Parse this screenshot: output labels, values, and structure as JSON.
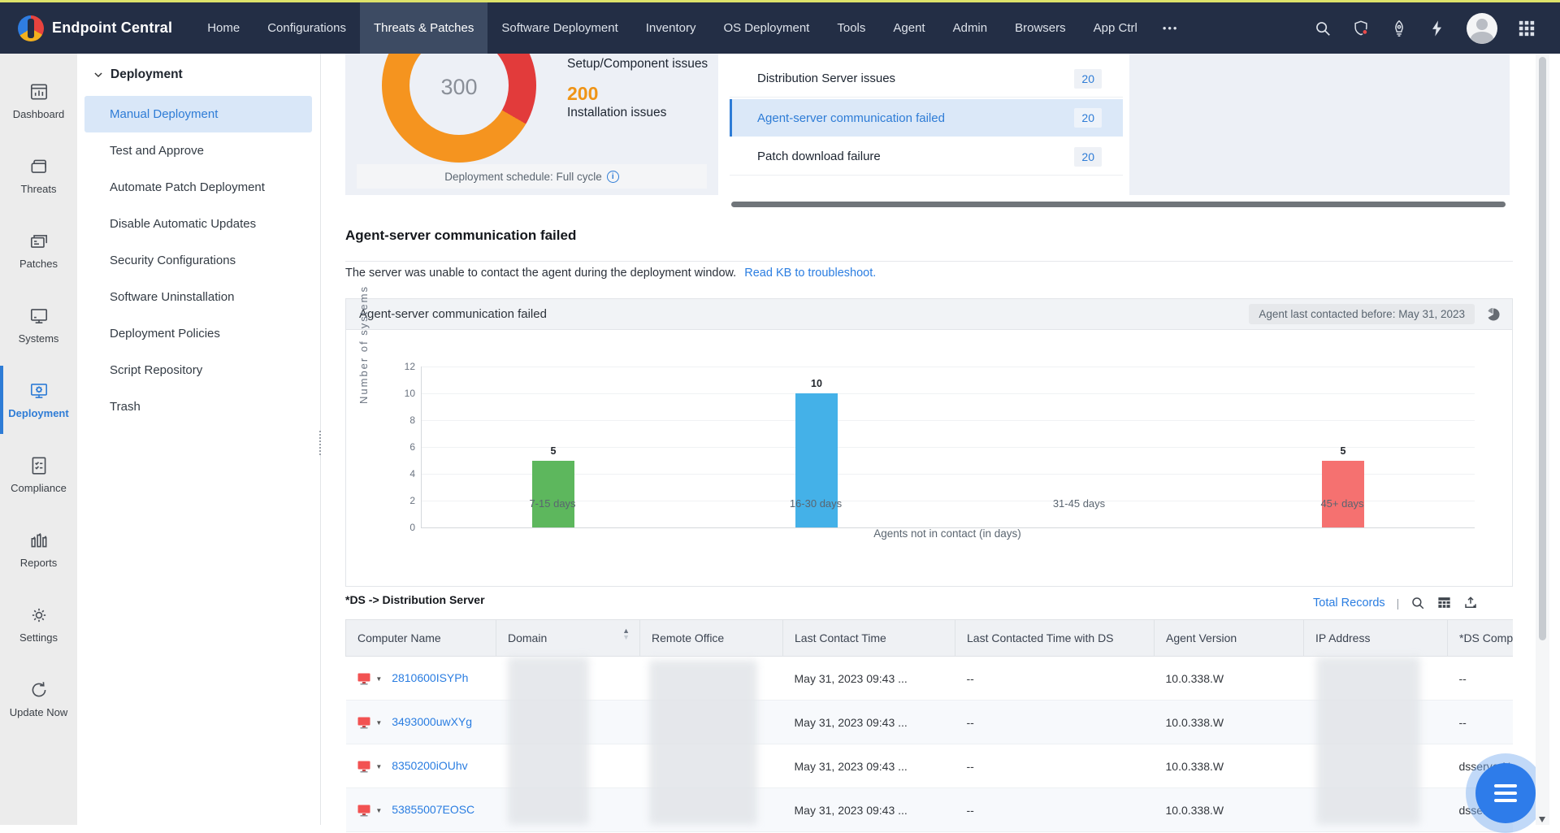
{
  "navbar": {
    "brand": "Endpoint Central",
    "items": [
      {
        "label": "Home"
      },
      {
        "label": "Configurations"
      },
      {
        "label": "Threats & Patches"
      },
      {
        "label": "Software Deployment"
      },
      {
        "label": "Inventory"
      },
      {
        "label": "OS Deployment"
      },
      {
        "label": "Tools"
      },
      {
        "label": "Agent"
      },
      {
        "label": "Admin"
      },
      {
        "label": "Browsers"
      },
      {
        "label": "App Ctrl"
      }
    ],
    "more_label": "•••",
    "active_item": "Threats & Patches"
  },
  "sidebar": {
    "items": [
      {
        "label": "Dashboard"
      },
      {
        "label": "Threats"
      },
      {
        "label": "Patches"
      },
      {
        "label": "Systems"
      },
      {
        "label": "Deployment"
      },
      {
        "label": "Compliance"
      },
      {
        "label": "Reports"
      },
      {
        "label": "Settings"
      },
      {
        "label": "Update Now"
      }
    ],
    "active_item": "Deployment",
    "accent_color": "#2e7cd6"
  },
  "submenu": {
    "header": "Deployment",
    "items": [
      {
        "label": "Manual Deployment"
      },
      {
        "label": "Test and Approve"
      },
      {
        "label": "Automate Patch Deployment"
      },
      {
        "label": "Disable Automatic Updates"
      },
      {
        "label": "Security Configurations"
      },
      {
        "label": "Software Uninstallation"
      },
      {
        "label": "Deployment Policies"
      },
      {
        "label": "Script Repository"
      },
      {
        "label": "Trash"
      }
    ],
    "selected_item": "Manual Deployment"
  },
  "overview": {
    "donut": {
      "total": "300",
      "colors": {
        "setup_component": "#e23b3b",
        "installation": "#f5941f"
      }
    },
    "legend": [
      {
        "label": "Setup/Component issues"
      },
      {
        "value": "200",
        "label": "Installation issues"
      }
    ],
    "schedule_text": "Deployment schedule: Full cycle",
    "issues": [
      {
        "label": "Distribution Server issues",
        "count": "20"
      },
      {
        "label": "Agent-server communication failed",
        "count": "20",
        "selected": true
      },
      {
        "label": "Patch download failure",
        "count": "20"
      }
    ]
  },
  "section": {
    "title": "Agent-server communication failed",
    "description": "The server was unable to contact the agent during the deployment window.",
    "kb_link": "Read KB to troubleshoot."
  },
  "panel": {
    "title": "Agent-server communication failed",
    "filter_chip": "Agent last contacted before: May 31, 2023"
  },
  "chart_data": {
    "type": "bar",
    "title": "Agent-server communication failed",
    "categories": [
      "7-15 days",
      "16-30 days",
      "31-45 days",
      "45+ days"
    ],
    "values": [
      5,
      10,
      0,
      5
    ],
    "data_labels": [
      "5",
      "10",
      "",
      "5"
    ],
    "bar_colors": [
      "#5db75d",
      "#44b1e8",
      "#cccccc",
      "#f57170"
    ],
    "xlabel": "Agents not in contact (in days)",
    "ylabel": "Number of systems",
    "yticks": [
      "12",
      "10",
      "8",
      "6",
      "4",
      "2",
      "0"
    ],
    "ylim": [
      0,
      12
    ],
    "grid": true,
    "legend_position": "none"
  },
  "table": {
    "note": "*DS -> Distribution Server",
    "toolbar": {
      "total_records": "Total Records",
      "separator": "|"
    },
    "columns": [
      "Computer Name",
      "Domain",
      "Remote Office",
      "Last Contact Time",
      "Last Contacted Time with DS",
      "Agent Version",
      "IP Address",
      "*DS Comp"
    ],
    "sorted_column": "Domain",
    "rows": [
      {
        "name": "2810600ISYPh",
        "last_contact": "May 31, 2023 09:43 ...",
        "ds_contact": "--",
        "version": "10.0.338.W",
        "ds_comp": "--"
      },
      {
        "name": "3493000uwXYg",
        "last_contact": "May 31, 2023 09:43 ...",
        "ds_contact": "--",
        "version": "10.0.338.W",
        "ds_comp": "--"
      },
      {
        "name": "8350200iOUhv",
        "last_contact": "May 31, 2023 09:43 ...",
        "ds_contact": "--",
        "version": "10.0.338.W",
        "ds_comp": "dsserverN"
      },
      {
        "name": "53855007EOSC",
        "last_contact": "May 31, 2023 09:43 ...",
        "ds_contact": "--",
        "version": "10.0.338.W",
        "ds_comp": "dsserverN"
      }
    ]
  }
}
